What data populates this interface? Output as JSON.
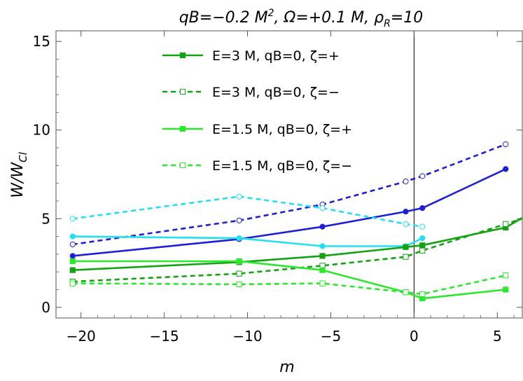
{
  "chart_data": {
    "type": "line",
    "title": "qB=−0.2 M², Ω=+0.1 M, ρR=10",
    "title_parts": {
      "qb": "qB=−0.2 M",
      "qb_sup": "2",
      "omega": ", Ω=+0.1 M, ",
      "rho": "ρ",
      "rho_sub": "R",
      "rho_val": "=10"
    },
    "xlabel": "m",
    "ylabel": "W/W_Cl",
    "ylabel_parts": {
      "main": "W/W",
      "sub": "Cl"
    },
    "xlim": [
      -21.5,
      6.5
    ],
    "ylim": [
      -0.6,
      15.6
    ],
    "xticks": [
      -20,
      -15,
      -10,
      -5,
      0,
      5
    ],
    "xtick_labels": [
      "−20",
      "−15",
      "−10",
      "−5",
      "0",
      "5"
    ],
    "yticks": [
      0,
      5,
      10,
      15
    ],
    "ytick_labels": [
      "0",
      "5",
      "10",
      "15"
    ],
    "vertical_line_x": 0,
    "legend_position": "top-center",
    "series": [
      {
        "name": "",
        "color": "#1f1fd8",
        "dash": "solid",
        "marker": "filled-circle",
        "in_legend": false,
        "x": [
          -20.5,
          -10.5,
          -5.5,
          -0.5,
          0.5,
          5.5
        ],
        "y": [
          2.9,
          3.85,
          4.55,
          5.4,
          5.6,
          7.8
        ]
      },
      {
        "name": "",
        "color": "#1f1fd8",
        "dash": "dashed",
        "marker": "open-circle",
        "in_legend": false,
        "x": [
          -20.5,
          -10.5,
          -5.5,
          -0.5,
          0.5,
          5.5
        ],
        "y": [
          3.55,
          4.9,
          5.8,
          7.1,
          7.4,
          9.2
        ]
      },
      {
        "name": "",
        "color": "#22e0f0",
        "dash": "solid",
        "marker": "filled-circle",
        "in_legend": false,
        "x": [
          -20.5,
          -10.5,
          -5.5,
          -0.5,
          0.5
        ],
        "y": [
          4.0,
          3.9,
          3.45,
          3.45,
          3.9
        ]
      },
      {
        "name": "",
        "color": "#22e0f0",
        "dash": "dashed",
        "marker": "open-circle",
        "in_legend": false,
        "x": [
          -20.5,
          -10.5,
          -5.5,
          -0.5,
          0.5
        ],
        "y": [
          5.0,
          6.25,
          5.6,
          4.7,
          4.55
        ]
      },
      {
        "name": "E=3 M, qB=0, ζ=+",
        "color": "#12a312",
        "dash": "solid",
        "marker": "filled-square",
        "in_legend": true,
        "x": [
          -20.5,
          -10.5,
          -5.5,
          -0.5,
          0.5,
          5.5,
          6.5
        ],
        "y": [
          2.1,
          2.55,
          2.9,
          3.4,
          3.5,
          4.5,
          5.05
        ]
      },
      {
        "name": "E=3 M, qB=0, ζ=−",
        "color": "#12a312",
        "dash": "dashed",
        "marker": "open-square",
        "in_legend": true,
        "x": [
          -20.5,
          -10.5,
          -5.5,
          -0.5,
          0.5,
          5.5,
          6.5
        ],
        "y": [
          1.45,
          1.9,
          2.35,
          2.85,
          3.2,
          4.7,
          5.0
        ]
      },
      {
        "name": "E=1.5 M, qB=0, ζ=+",
        "color": "#2ce82c",
        "dash": "solid",
        "marker": "filled-square",
        "in_legend": true,
        "x": [
          -20.5,
          -10.5,
          -5.5,
          -0.5,
          0.5,
          5.5
        ],
        "y": [
          2.6,
          2.6,
          2.1,
          0.85,
          0.5,
          1.0
        ]
      },
      {
        "name": "E=1.5 M, qB=0, ζ=−",
        "color": "#2ce82c",
        "dash": "dashed",
        "marker": "open-square",
        "in_legend": true,
        "x": [
          -20.5,
          -10.5,
          -5.5,
          -0.5,
          0.5,
          5.5
        ],
        "y": [
          1.35,
          1.3,
          1.35,
          0.85,
          0.75,
          1.8
        ]
      }
    ]
  }
}
